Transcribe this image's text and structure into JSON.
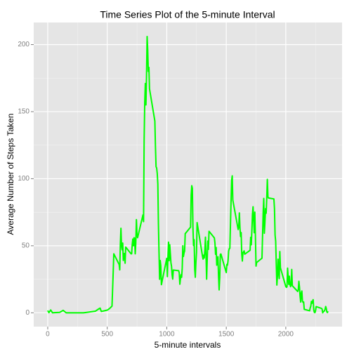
{
  "chart_data": {
    "type": "line",
    "title": "Time Series Plot of the 5-minute Interval",
    "xlabel": "5-minute intervals",
    "ylabel": "Average Number of Steps Taken",
    "xlim": [
      -117.75,
      2472.75
    ],
    "ylim": [
      -10.3,
      216.5
    ],
    "xticks": [
      0,
      500,
      1000,
      1500,
      2000
    ],
    "yticks": [
      0,
      50,
      100,
      150,
      200
    ],
    "xminorticks": [
      250,
      750,
      1250,
      1750,
      2250
    ],
    "yminorticks": [
      25,
      75,
      125,
      175
    ],
    "grid": true,
    "series": [
      {
        "color": "#00ff00",
        "x": [
          0,
          10,
          25,
          40,
          55,
          100,
          130,
          155,
          300,
          400,
          430,
          440,
          450,
          500,
          520,
          540,
          550,
          555,
          600,
          605,
          610,
          615,
          620,
          625,
          630,
          635,
          640,
          645,
          650,
          655,
          700,
          705,
          710,
          715,
          720,
          725,
          730,
          735,
          740,
          745,
          750,
          755,
          800,
          805,
          810,
          815,
          820,
          825,
          830,
          835,
          840,
          845,
          850,
          855,
          900,
          905,
          910,
          915,
          920,
          925,
          930,
          935,
          940,
          945,
          950,
          955,
          1000,
          1005,
          1010,
          1015,
          1020,
          1025,
          1030,
          1035,
          1040,
          1045,
          1050,
          1055,
          1100,
          1105,
          1110,
          1115,
          1120,
          1125,
          1130,
          1135,
          1140,
          1145,
          1150,
          1155,
          1200,
          1205,
          1210,
          1215,
          1220,
          1225,
          1230,
          1235,
          1240,
          1245,
          1250,
          1255,
          1300,
          1305,
          1310,
          1315,
          1320,
          1325,
          1330,
          1335,
          1340,
          1345,
          1350,
          1355,
          1400,
          1405,
          1410,
          1415,
          1420,
          1425,
          1430,
          1435,
          1440,
          1445,
          1450,
          1455,
          1500,
          1505,
          1510,
          1515,
          1520,
          1525,
          1530,
          1535,
          1540,
          1545,
          1550,
          1555,
          1600,
          1605,
          1610,
          1615,
          1620,
          1625,
          1630,
          1635,
          1640,
          1645,
          1650,
          1655,
          1700,
          1705,
          1710,
          1715,
          1720,
          1725,
          1730,
          1735,
          1740,
          1745,
          1750,
          1755,
          1800,
          1805,
          1810,
          1815,
          1820,
          1825,
          1830,
          1835,
          1840,
          1845,
          1850,
          1855,
          1900,
          1905,
          1910,
          1915,
          1920,
          1925,
          1930,
          1935,
          1940,
          1945,
          1950,
          1955,
          2000,
          2005,
          2010,
          2015,
          2020,
          2025,
          2030,
          2035,
          2040,
          2045,
          2050,
          2055,
          2100,
          2105,
          2110,
          2115,
          2120,
          2125,
          2130,
          2135,
          2140,
          2145,
          2150,
          2155,
          2200,
          2205,
          2210,
          2215,
          2220,
          2225,
          2230,
          2235,
          2240,
          2245,
          2250,
          2255,
          2300,
          2305,
          2310,
          2315,
          2320,
          2325,
          2330,
          2335,
          2340,
          2345,
          2350,
          2355
        ],
        "values": [
          1.7,
          0.1,
          2.1,
          0,
          0.1,
          0.3,
          1.8,
          0,
          0,
          1.2,
          3,
          3.5,
          1,
          2,
          3.2,
          5,
          30,
          44,
          36,
          32,
          51,
          63,
          50,
          47,
          52,
          39,
          44,
          44.2,
          37,
          49,
          44,
          44,
          51,
          55,
          50,
          56,
          55.7,
          44,
          52,
          69.5,
          57.8,
          56,
          73,
          68,
          129,
          157,
          171,
          155,
          177,
          206,
          196,
          180,
          183,
          167,
          143,
          124,
          109,
          108,
          104,
          96,
          66,
          45,
          25,
          39,
          35,
          21,
          40.6,
          27,
          42,
          52.7,
          38.9,
          50.8,
          44.3,
          37.4,
          34.7,
          28.3,
          25.1,
          31.9,
          31.4,
          29.7,
          21.3,
          25.5,
          28.4,
          26.5,
          33.4,
          50,
          42,
          44.6,
          46,
          59,
          63.9,
          87.6,
          94.8,
          92.8,
          63.4,
          50.2,
          54.5,
          32.4,
          26.5,
          37.7,
          45,
          67.3,
          42.3,
          40,
          43,
          40.9,
          46.2,
          56.4,
          42.7,
          25.1,
          39.9,
          53.5,
          47.3,
          60.8,
          55.8,
          51.9,
          43.6,
          48.7,
          35.5,
          37.5,
          41.8,
          27.5,
          17.1,
          26.1,
          43.6,
          43.8,
          30,
          36.1,
          35.5,
          38.8,
          46,
          47.8,
          48.1,
          65.3,
          82.9,
          98.7,
          102.1,
          84,
          62.1,
          64.1,
          74.5,
          63.2,
          56.9,
          59.8,
          43.9,
          38.6,
          44.7,
          45.5,
          46.2,
          43.7,
          46.6,
          56.3,
          50.7,
          61.2,
          73.4,
          79.1,
          68.9,
          59.7,
          75.1,
          56.5,
          34.8,
          37.5,
          40.7,
          58,
          74.7,
          85.3,
          59.3,
          67.8,
          77.7,
          74.2,
          85.3,
          99.5,
          86.6,
          85.6,
          84.9,
          77.8,
          58,
          53.4,
          36.3,
          20.7,
          27.4,
          40,
          30.2,
          25.5,
          45.7,
          33.5,
          19.6,
          19,
          19.3,
          33.3,
          26.8,
          21.2,
          27.3,
          21.3,
          19.5,
          21.3,
          32.3,
          20.2,
          15.9,
          17.2,
          23.5,
          19.2,
          12.5,
          8,
          14.7,
          16.3,
          8.7,
          7.8,
          8.1,
          2.6,
          1.5,
          3.7,
          4.8,
          8.5,
          7.1,
          8.7,
          9.8,
          2.2,
          0.3,
          0.1,
          1.6,
          4.6,
          3.3,
          2.8,
          0,
          0.8,
          1,
          1.6,
          2.6,
          4.7,
          3.3,
          0.6,
          0.2,
          1.1
        ]
      }
    ]
  }
}
